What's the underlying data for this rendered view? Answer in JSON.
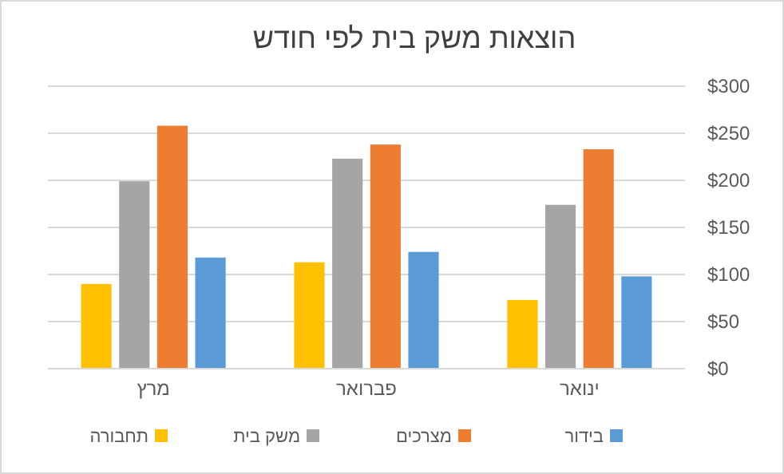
{
  "chart_data": {
    "type": "bar",
    "title": "הוצאות משק בית לפי חודש",
    "categories": [
      "מרץ",
      "פברואר",
      "ינואר"
    ],
    "series": [
      {
        "name": "תחבורה",
        "color": "#ffc000",
        "values": [
          90,
          113,
          73
        ]
      },
      {
        "name": "משק בית",
        "color": "#a5a5a5",
        "values": [
          199,
          223,
          174
        ]
      },
      {
        "name": "מצרכים",
        "color": "#ed7d31",
        "values": [
          258,
          238,
          233
        ]
      },
      {
        "name": "בידור",
        "color": "#5b9bd5",
        "values": [
          118,
          124,
          98
        ]
      }
    ],
    "ylim": [
      0,
      300
    ],
    "yticks": [
      {
        "value": 0,
        "label": "$0"
      },
      {
        "value": 50,
        "label": "$50"
      },
      {
        "value": 100,
        "label": "$100"
      },
      {
        "value": 150,
        "label": "$150"
      },
      {
        "value": 200,
        "label": "$200"
      },
      {
        "value": 250,
        "label": "$250"
      },
      {
        "value": 300,
        "label": "$300"
      }
    ],
    "grid": "y",
    "legend": "bottom"
  }
}
